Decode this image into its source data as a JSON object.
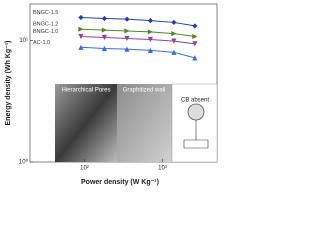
{
  "chart_data": {
    "type": "line",
    "x_label": "Power density (W Kg⁻¹)",
    "y_label": "Energy density (Wh Kg⁻¹)",
    "x_log": true,
    "y_log": true,
    "xlim": [
      20,
      5000
    ],
    "ylim": [
      1,
      20
    ],
    "xticks": [
      {
        "value": 100,
        "label": "10²"
      },
      {
        "value": 1000,
        "label": "10³"
      }
    ],
    "yticks": [
      {
        "value": 1,
        "label": "10⁰"
      },
      {
        "value": 10,
        "label": "10¹"
      }
    ],
    "x": [
      90,
      180,
      350,
      700,
      1400,
      2600
    ],
    "series": [
      {
        "name": "BNGC-1.5",
        "color": "#1f3fb0",
        "marker": "diamond",
        "values": [
          15.5,
          15.2,
          15,
          14.6,
          14.1,
          13.2
        ]
      },
      {
        "name": "BNGC-1.2",
        "color": "#4a8a2a",
        "marker": "triangle-right",
        "values": [
          12.4,
          12.2,
          12,
          11.8,
          11.4,
          10.8
        ]
      },
      {
        "name": "BNGC-1.0",
        "color": "#9b3f8f",
        "marker": "triangle-down",
        "values": [
          10.8,
          10.6,
          10.4,
          10.2,
          9.9,
          9.4
        ]
      },
      {
        "name": "AC-1.0",
        "color": "#3a6fd8",
        "marker": "triangle",
        "values": [
          8.8,
          8.6,
          8.5,
          8.3,
          8.0,
          7.2
        ]
      }
    ],
    "annotations": [
      "Hierarchical Pores",
      "Graphitized wall",
      "CB absent"
    ]
  }
}
